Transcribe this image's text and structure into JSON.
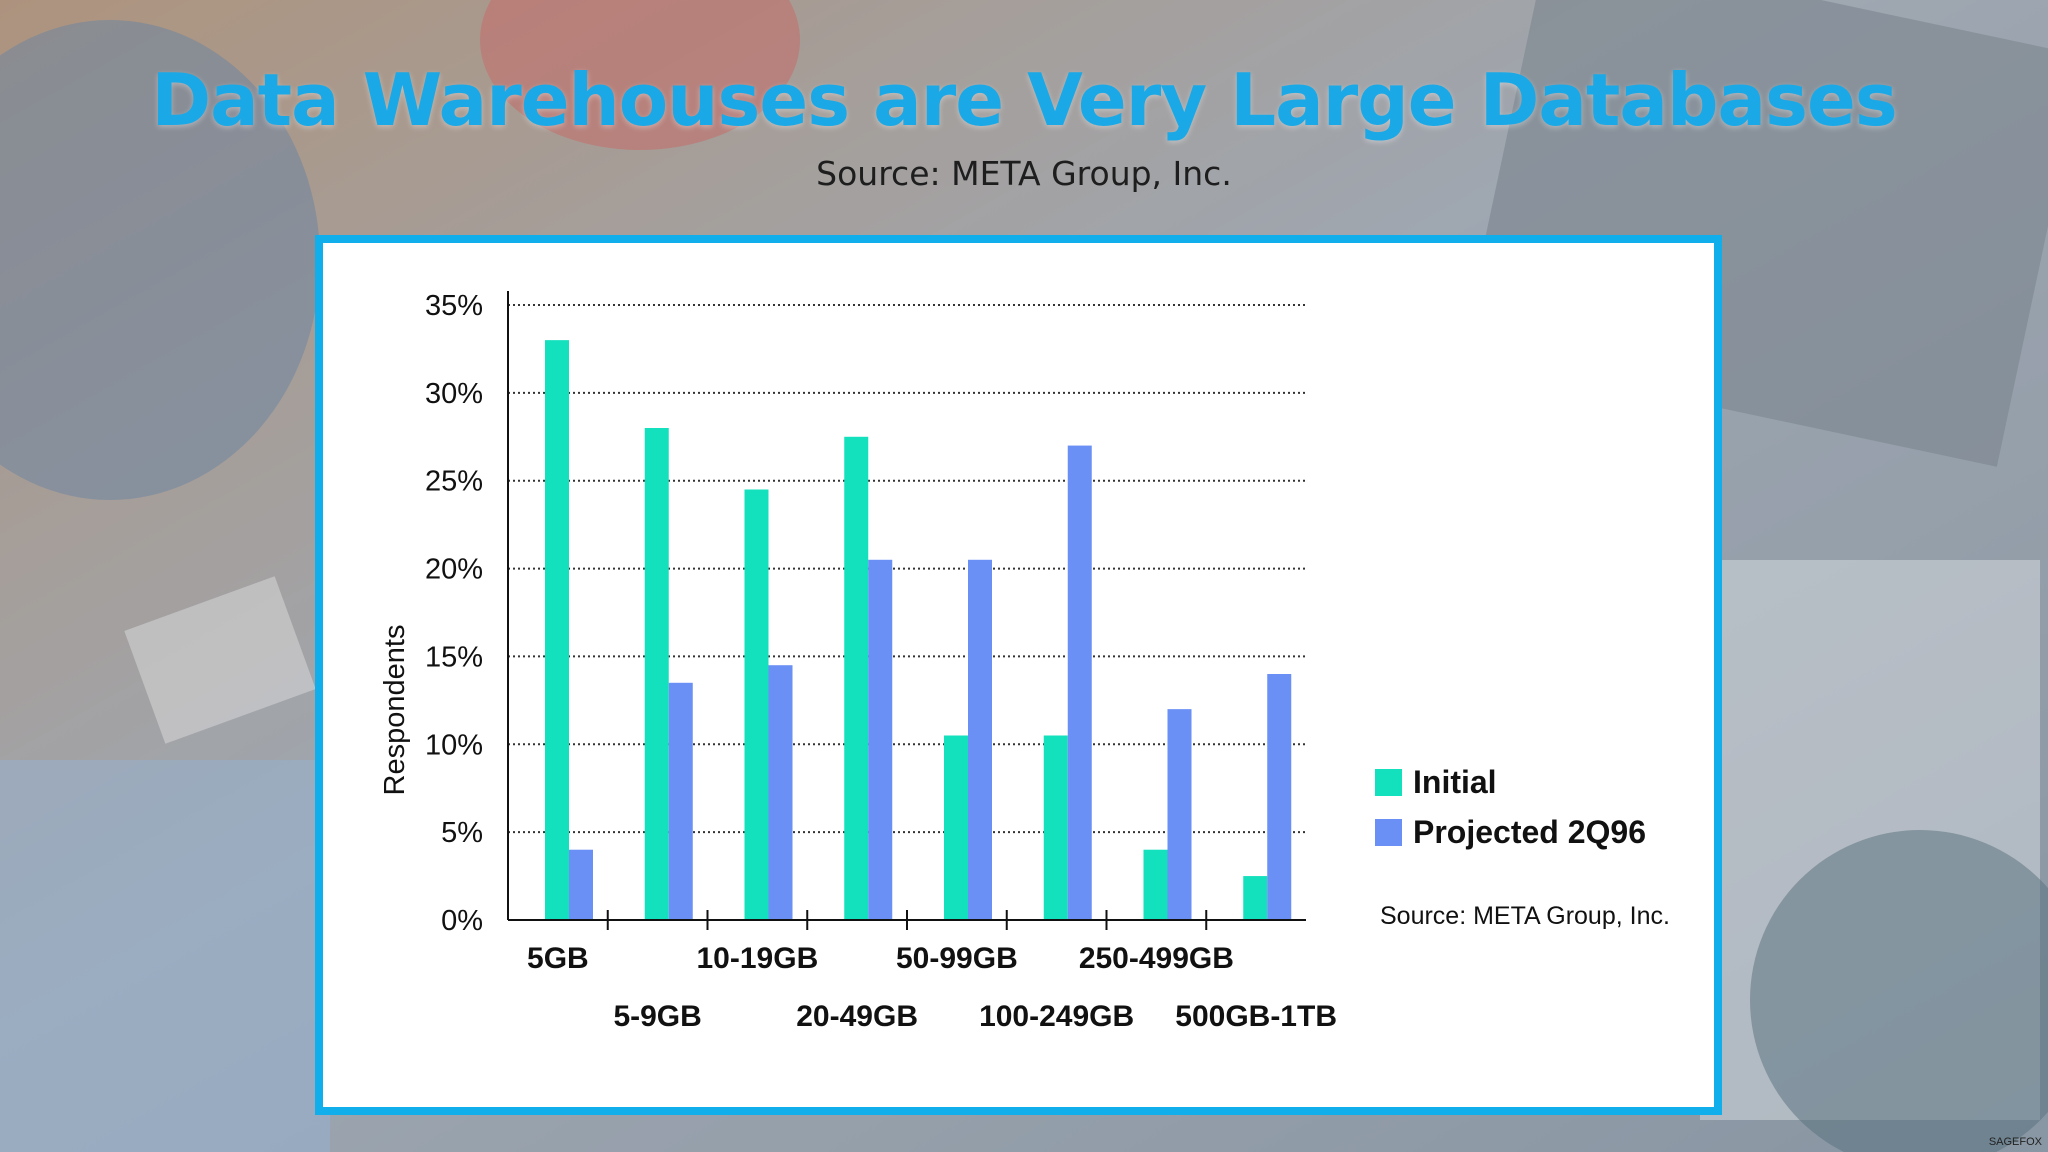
{
  "slide": {
    "title": "Data Warehouses are Very Large Databases",
    "subtitle": "Source: META Group, Inc.",
    "brand": "SAGEFOX"
  },
  "colors": {
    "title": "#1aa9e6",
    "frame": "#10aeea",
    "initial": "#13e0bc",
    "projected": "#6a8ff5"
  },
  "chart_data": {
    "type": "bar",
    "title": "",
    "xlabel": "",
    "ylabel": "Respondents",
    "ylim": [
      0,
      35
    ],
    "yticks": [
      "0%",
      "5%",
      "10%",
      "15%",
      "20%",
      "25%",
      "30%",
      "35%"
    ],
    "categories": [
      "5GB",
      "5-9GB",
      "10-19GB",
      "20-49GB",
      "50-99GB",
      "100-249GB",
      "250-499GB",
      "500GB-1TB"
    ],
    "series": [
      {
        "name": "Initial",
        "values": [
          33,
          28,
          24.5,
          27.5,
          10.5,
          10.5,
          4,
          2.5
        ]
      },
      {
        "name": "Projected 2Q96",
        "values": [
          4,
          13.5,
          14.5,
          20.5,
          20.5,
          27,
          12,
          14
        ]
      }
    ],
    "grid": true,
    "legend": "right",
    "source_note": "Source: META Group, Inc."
  }
}
